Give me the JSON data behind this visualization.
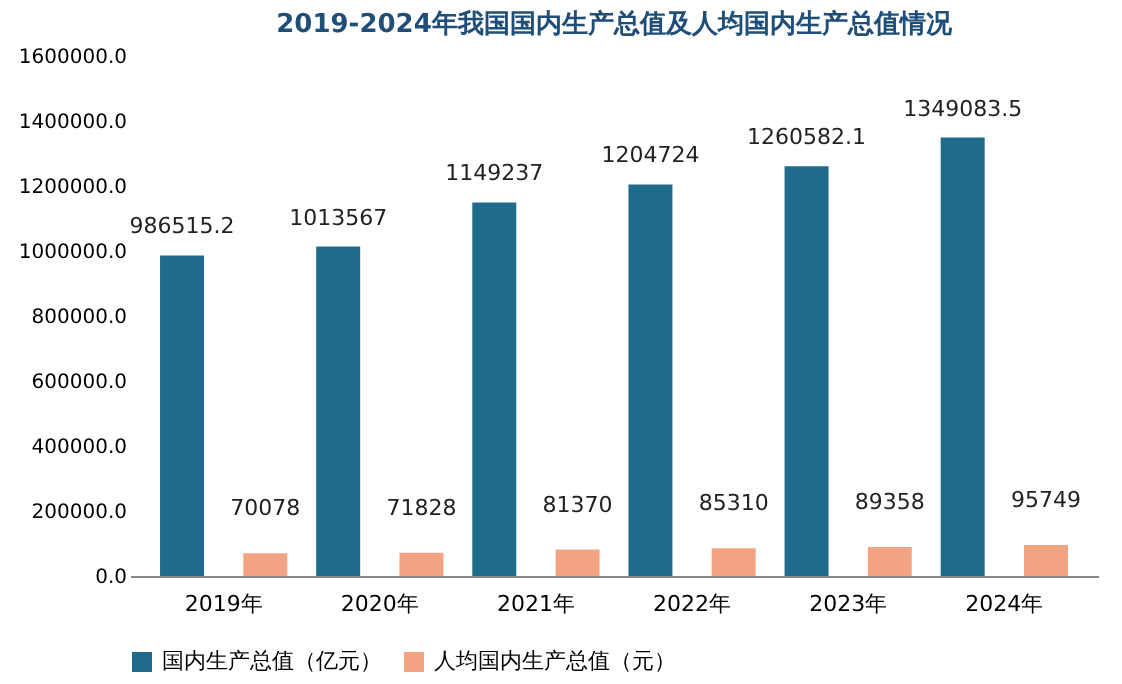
{
  "chart_data": {
    "type": "bar",
    "title": "2019-2024年我国国内生产总值及人均国内生产总值情况",
    "categories": [
      "2019年",
      "2020年",
      "2021年",
      "2022年",
      "2023年",
      "2024年"
    ],
    "series": [
      {
        "name": "国内生产总值（亿元）",
        "color": "#1f6b8c",
        "values": [
          986515.2,
          1013567,
          1149237,
          1204724,
          1260582.1,
          1349083.5
        ]
      },
      {
        "name": "人均国内生产总值（元）",
        "color": "#f2a482",
        "values": [
          70078,
          71828,
          81370,
          85310,
          89358,
          95749
        ]
      }
    ],
    "ylim": [
      0,
      1600000
    ],
    "yticks": [
      {
        "value": 0,
        "label": "0.0"
      },
      {
        "value": 200000,
        "label": "200000.0"
      },
      {
        "value": 400000,
        "label": "400000.0"
      },
      {
        "value": 600000,
        "label": "600000.0"
      },
      {
        "value": 800000,
        "label": "800000.0"
      },
      {
        "value": 1000000,
        "label": "1000000.0"
      },
      {
        "value": 1200000,
        "label": "1200000.0"
      },
      {
        "value": 1400000,
        "label": "1400000.0"
      },
      {
        "value": 1600000,
        "label": "1600000.0"
      }
    ],
    "data_labels": true,
    "legend": "bottom",
    "grid": false
  }
}
